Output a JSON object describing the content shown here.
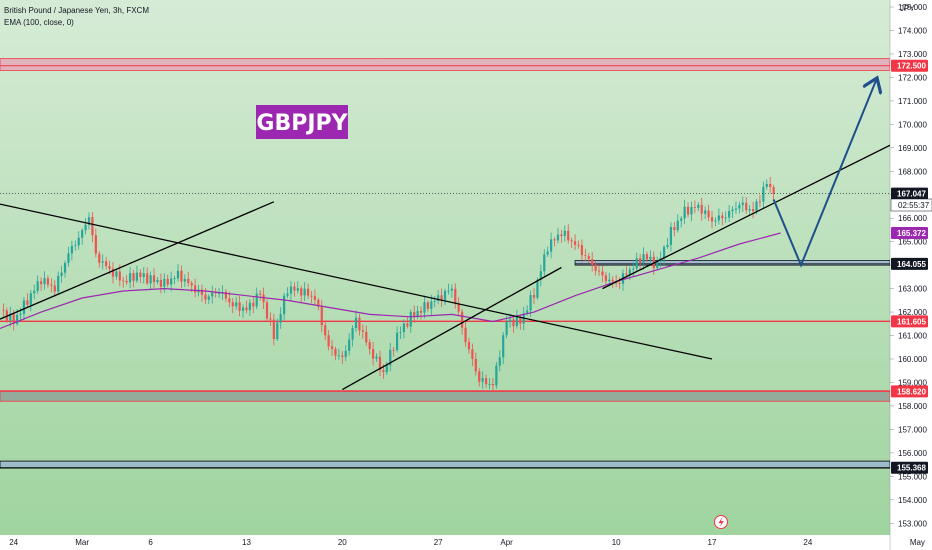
{
  "header": {
    "title": "British Pound / Japanese Yen, 3h, FXCM",
    "indicator": "EMA (100, close, 0)"
  },
  "watermark": {
    "label": "GBPJPY",
    "color": "#9c27b0"
  },
  "currency_label": "JPY",
  "countdown_label": "02:55:37",
  "colors": {
    "background_top": "#d6ebd6",
    "background_bottom": "#9fd49f",
    "candle_up": "#26a69a",
    "candle_down": "#ef5350",
    "ema": "#9c27b0",
    "trendline": "#000000",
    "horizontal_red": "#f23645",
    "projection": "#1e4f8a",
    "zone_pink": "#e8a2b5",
    "zone_grey": "#8c9a94",
    "zone_blue": "#9ab2d3"
  },
  "chart_data": {
    "type": "candlestick",
    "symbol": "GBPJPY",
    "timeframe": "3h",
    "ylim": [
      152.5,
      175.3
    ],
    "y_ticks": [
      153.0,
      154.0,
      155.0,
      156.0,
      157.0,
      158.0,
      159.0,
      160.0,
      161.0,
      162.0,
      163.0,
      164.0,
      165.0,
      166.0,
      167.0,
      168.0,
      169.0,
      170.0,
      171.0,
      172.0,
      173.0,
      174.0,
      175.0
    ],
    "x_ticks": [
      "24",
      "Mar",
      "6",
      "13",
      "20",
      "27",
      "Apr",
      "10",
      "17",
      "24",
      "May"
    ],
    "x_tick_days": [
      -5,
      0,
      5,
      12,
      19,
      26,
      31,
      39,
      46,
      53,
      61
    ],
    "xlim_days": [
      -6,
      59
    ],
    "last_price": 167.047,
    "price_labels": [
      {
        "value": 172.5,
        "label": "172.500",
        "color": "#f23645"
      },
      {
        "value": 167.047,
        "label": "167.047",
        "color": "#131722"
      },
      {
        "value": 165.372,
        "label": "165.372",
        "color": "#9c27b0"
      },
      {
        "value": 164.055,
        "label": "164.055",
        "color": "#131722"
      },
      {
        "value": 161.605,
        "label": "161.605",
        "color": "#f23645"
      },
      {
        "value": 158.62,
        "label": "158.620",
        "color": "#f23645"
      },
      {
        "value": 155.368,
        "label": "155.368",
        "color": "#131722"
      }
    ],
    "horizontal_lines": [
      {
        "value": 172.5,
        "type": "zone",
        "low": 172.3,
        "high": 172.8
      },
      {
        "value": 161.605,
        "type": "line"
      },
      {
        "value": 158.62,
        "type": "zone",
        "low": 158.2,
        "high": 158.65
      },
      {
        "value": 155.368,
        "type": "zone",
        "low": 155.35,
        "high": 155.65
      },
      {
        "value": 164.055,
        "type": "zone_short",
        "low": 164.0,
        "high": 164.2,
        "from_day": 36
      }
    ],
    "price_path": [
      [
        -6,
        162.1
      ],
      [
        -5,
        161.6
      ],
      [
        -4,
        162.5
      ],
      [
        -3,
        163.4
      ],
      [
        -2,
        163.0
      ],
      [
        -1,
        164.5
      ],
      [
        0,
        165.4
      ],
      [
        0.5,
        166.1
      ],
      [
        1,
        164.4
      ],
      [
        2,
        163.8
      ],
      [
        3,
        163.3
      ],
      [
        4,
        163.6
      ],
      [
        5,
        163.4
      ],
      [
        6,
        163.2
      ],
      [
        7,
        163.6
      ],
      [
        8,
        163.1
      ],
      [
        9,
        162.6
      ],
      [
        10,
        162.9
      ],
      [
        11,
        162.3
      ],
      [
        12,
        162.1
      ],
      [
        13,
        162.8
      ],
      [
        14,
        161.0
      ],
      [
        15,
        163.0
      ],
      [
        16,
        162.9
      ],
      [
        17,
        162.6
      ],
      [
        18,
        160.5
      ],
      [
        19,
        160.0
      ],
      [
        20,
        161.7
      ],
      [
        21,
        160.4
      ],
      [
        22,
        159.4
      ],
      [
        23,
        161.0
      ],
      [
        24,
        161.8
      ],
      [
        25,
        162.2
      ],
      [
        26,
        162.6
      ],
      [
        27,
        163.0
      ],
      [
        28,
        160.8
      ],
      [
        29,
        159.1
      ],
      [
        30,
        158.9
      ],
      [
        31,
        161.6
      ],
      [
        32,
        161.6
      ],
      [
        33,
        162.8
      ],
      [
        34,
        164.8
      ],
      [
        35,
        165.4
      ],
      [
        36,
        164.9
      ],
      [
        37,
        164.2
      ],
      [
        38,
        163.5
      ],
      [
        39,
        163.2
      ],
      [
        40,
        163.8
      ],
      [
        41,
        164.4
      ],
      [
        42,
        164.0
      ],
      [
        43,
        165.4
      ],
      [
        44,
        166.3
      ],
      [
        45,
        166.5
      ],
      [
        46,
        165.9
      ],
      [
        47,
        166.1
      ],
      [
        48,
        166.6
      ],
      [
        49,
        166.3
      ],
      [
        50,
        167.5
      ],
      [
        50.5,
        167.047
      ]
    ],
    "ema_path": [
      [
        -6,
        161.3
      ],
      [
        -3,
        162.0
      ],
      [
        0,
        162.6
      ],
      [
        3,
        162.9
      ],
      [
        6,
        163.0
      ],
      [
        9,
        162.9
      ],
      [
        12,
        162.7
      ],
      [
        15,
        162.5
      ],
      [
        18,
        162.2
      ],
      [
        21,
        161.9
      ],
      [
        24,
        161.8
      ],
      [
        27,
        161.9
      ],
      [
        30,
        161.6
      ],
      [
        33,
        162.0
      ],
      [
        36,
        162.7
      ],
      [
        39,
        163.3
      ],
      [
        42,
        163.8
      ],
      [
        45,
        164.3
      ],
      [
        48,
        164.9
      ],
      [
        51,
        165.372
      ]
    ],
    "trend_lines": [
      {
        "from": [
          -6,
          166.6
        ],
        "to": [
          46,
          160.0
        ]
      },
      {
        "from": [
          -6,
          161.7
        ],
        "to": [
          14,
          166.7
        ]
      },
      {
        "from": [
          19,
          158.7
        ],
        "to": [
          35,
          163.9
        ]
      },
      {
        "from": [
          38,
          163.0
        ],
        "to": [
          60,
          169.4
        ]
      }
    ],
    "projection_path": [
      [
        50.5,
        166.8
      ],
      [
        52.5,
        164.0
      ],
      [
        58,
        171.9
      ]
    ]
  }
}
